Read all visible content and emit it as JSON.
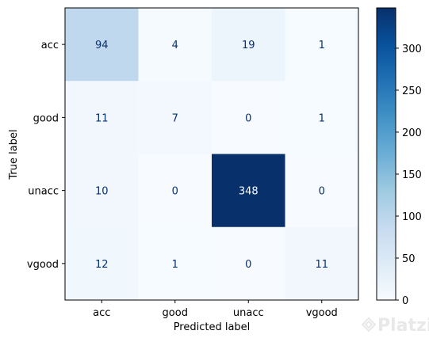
{
  "chart_data": {
    "type": "heatmap",
    "xlabel": "Predicted label",
    "ylabel": "True label",
    "x_categories": [
      "acc",
      "good",
      "unacc",
      "vgood"
    ],
    "y_categories": [
      "acc",
      "good",
      "unacc",
      "vgood"
    ],
    "matrix": [
      [
        94,
        4,
        19,
        1
      ],
      [
        11,
        7,
        0,
        1
      ],
      [
        10,
        0,
        348,
        0
      ],
      [
        12,
        1,
        0,
        11
      ]
    ],
    "colormap": "Blues",
    "color_range": [
      0,
      348
    ],
    "colorbar_ticks": [
      0,
      50,
      100,
      150,
      200,
      250,
      300
    ]
  },
  "watermark": {
    "text": "Platzi"
  }
}
